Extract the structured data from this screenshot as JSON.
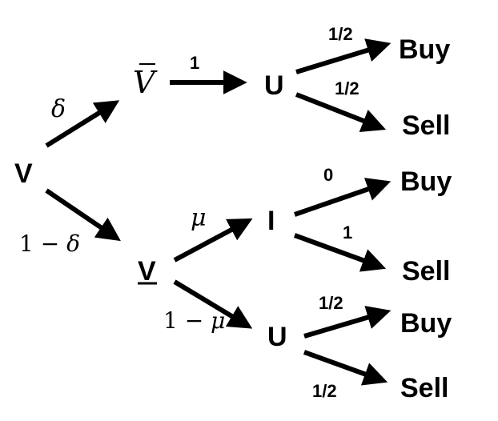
{
  "nodes": {
    "root": "V",
    "vbar": "V",
    "vlow": "V",
    "u_top": "U",
    "i_mid": "I",
    "u_bot": "U"
  },
  "leaves": {
    "top_buy": "Buy",
    "top_sell": "Sell",
    "mid_buy": "Buy",
    "mid_sell": "Sell",
    "bot_buy": "Buy",
    "bot_sell": "Sell"
  },
  "probabilities": {
    "delta": "δ",
    "one_minus_delta_num": "1 − ",
    "one_minus_delta_sym": "δ",
    "vbar_to_u": "1",
    "u_top_buy": "1/2",
    "u_top_sell": "1/2",
    "mu": "μ",
    "one_minus_mu_num": "1 − ",
    "one_minus_mu_sym": "μ",
    "i_buy": "0",
    "i_sell": "1",
    "u_bot_buy": "1/2",
    "u_bot_sell": "1/2"
  }
}
